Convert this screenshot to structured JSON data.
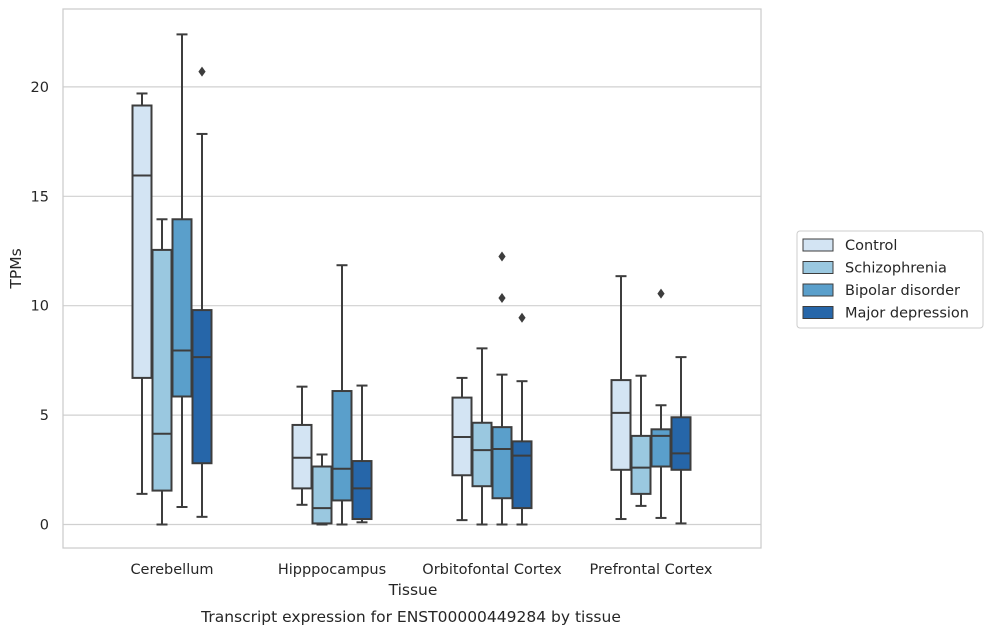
{
  "chart_data": {
    "type": "box",
    "xlabel": "Tissue",
    "ylabel": "TPMs",
    "caption": "Transcript expression for ENST00000449284 by tissue",
    "ylim": [
      -1.05,
      23.5
    ],
    "yticks": [
      0,
      5,
      10,
      15,
      20
    ],
    "grid": "horizontal",
    "legend_position": "right",
    "categories": [
      "Cerebellum",
      "Hipppocampus",
      "Orbitofontal Cortex",
      "Prefrontal Cortex"
    ],
    "series": [
      {
        "name": "Control",
        "color": "#d3e4f3",
        "boxes": [
          {
            "whisker_low": 1.4,
            "q1": 6.7,
            "median": 15.95,
            "q3": 19.15,
            "whisker_high": 19.7,
            "outliers": []
          },
          {
            "whisker_low": 0.9,
            "q1": 1.65,
            "median": 3.05,
            "q3": 4.55,
            "whisker_high": 6.3,
            "outliers": []
          },
          {
            "whisker_low": 0.2,
            "q1": 2.25,
            "median": 4.0,
            "q3": 5.8,
            "whisker_high": 6.7,
            "outliers": []
          },
          {
            "whisker_low": 0.25,
            "q1": 2.5,
            "median": 5.1,
            "q3": 6.6,
            "whisker_high": 11.35,
            "outliers": []
          }
        ]
      },
      {
        "name": "Schizophrenia",
        "color": "#9ac8e0",
        "boxes": [
          {
            "whisker_low": 0.0,
            "q1": 1.55,
            "median": 4.15,
            "q3": 12.55,
            "whisker_high": 13.95,
            "outliers": []
          },
          {
            "whisker_low": 0.0,
            "q1": 0.05,
            "median": 0.75,
            "q3": 2.65,
            "whisker_high": 3.2,
            "outliers": []
          },
          {
            "whisker_low": 0.0,
            "q1": 1.75,
            "median": 3.4,
            "q3": 4.65,
            "whisker_high": 8.05,
            "outliers": []
          },
          {
            "whisker_low": 0.85,
            "q1": 1.4,
            "median": 2.6,
            "q3": 4.05,
            "whisker_high": 6.8,
            "outliers": []
          }
        ]
      },
      {
        "name": "Bipolar disorder",
        "color": "#5a9fcb",
        "boxes": [
          {
            "whisker_low": 0.8,
            "q1": 5.85,
            "median": 7.95,
            "q3": 13.95,
            "whisker_high": 22.4,
            "outliers": []
          },
          {
            "whisker_low": 0.0,
            "q1": 1.1,
            "median": 2.55,
            "q3": 6.1,
            "whisker_high": 11.85,
            "outliers": []
          },
          {
            "whisker_low": 0.0,
            "q1": 1.2,
            "median": 3.45,
            "q3": 4.45,
            "whisker_high": 6.85,
            "outliers": [
              10.35,
              12.25
            ]
          },
          {
            "whisker_low": 0.3,
            "q1": 2.65,
            "median": 4.05,
            "q3": 4.35,
            "whisker_high": 5.45,
            "outliers": [
              10.55
            ]
          }
        ]
      },
      {
        "name": "Major depression",
        "color": "#2666a9",
        "boxes": [
          {
            "whisker_low": 0.35,
            "q1": 2.8,
            "median": 7.65,
            "q3": 9.8,
            "whisker_high": 17.85,
            "outliers": [
              20.7
            ]
          },
          {
            "whisker_low": 0.1,
            "q1": 0.25,
            "median": 1.65,
            "q3": 2.9,
            "whisker_high": 6.35,
            "outliers": []
          },
          {
            "whisker_low": 0.0,
            "q1": 0.75,
            "median": 3.15,
            "q3": 3.8,
            "whisker_high": 6.55,
            "outliers": [
              9.45
            ]
          },
          {
            "whisker_low": 0.05,
            "q1": 2.5,
            "median": 3.25,
            "q3": 4.9,
            "whisker_high": 7.65,
            "outliers": []
          }
        ]
      }
    ]
  }
}
